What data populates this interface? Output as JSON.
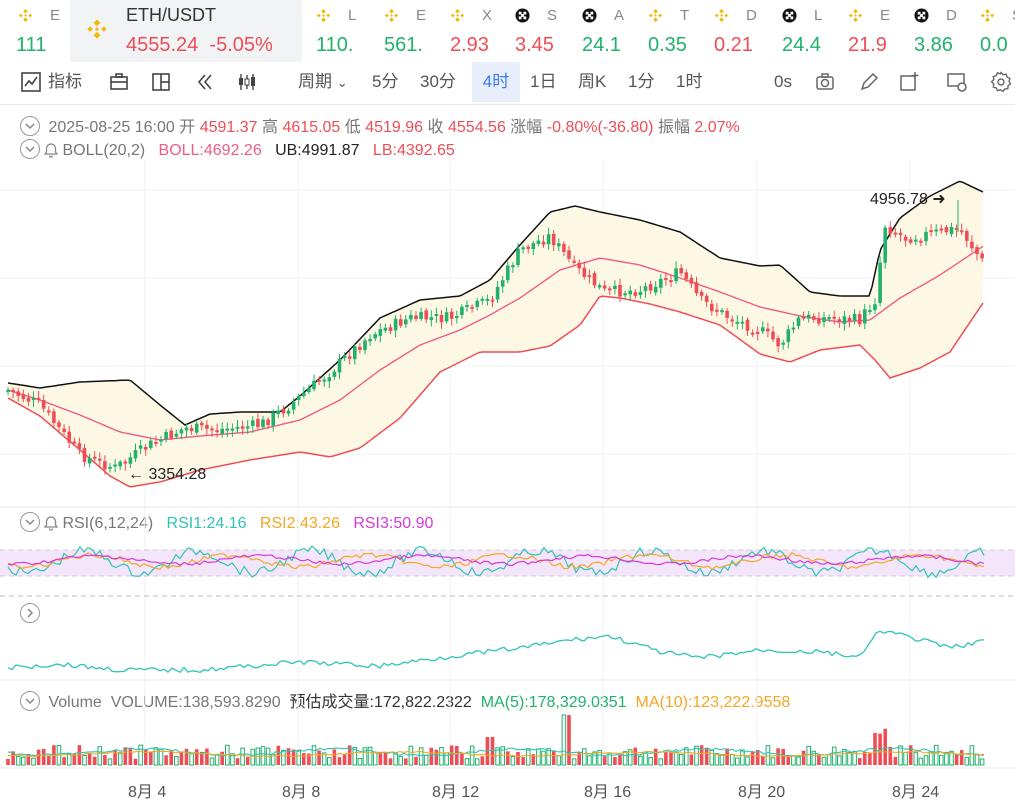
{
  "tickers": [
    {
      "name": "E",
      "price": "111"
    },
    {
      "name": "L",
      "price": "110."
    },
    {
      "name": "E",
      "price": "561."
    },
    {
      "name": "X",
      "price": "2.93"
    },
    {
      "name": "S",
      "price": "3.45"
    },
    {
      "name": "A",
      "price": "24.1"
    },
    {
      "name": "T",
      "price": "0.35"
    },
    {
      "name": "D",
      "price": "0.21"
    },
    {
      "name": "L",
      "price": "24.4"
    },
    {
      "name": "E",
      "price": "21.9"
    },
    {
      "name": "D",
      "price": "3.86"
    },
    {
      "name": "S",
      "price": "0.0"
    }
  ],
  "active_ticker": {
    "symbol": "ETH/USDT",
    "price": "4555.24",
    "change": "-5.05%"
  },
  "toolbar": {
    "indicators": "指标",
    "period": "周期",
    "intervals": [
      "5分",
      "30分",
      "4时",
      "1日",
      "周K",
      "1分",
      "1时"
    ],
    "selected_interval": "4时",
    "countdown": "0s"
  },
  "ohlc": {
    "date": "2025-08-25 16:00",
    "open_label": "开",
    "open": "4591.37",
    "high_label": "高",
    "high": "4615.05",
    "low_label": "低",
    "low": "4519.96",
    "close_label": "收",
    "close": "4554.56",
    "change_label": "涨幅",
    "change": "-0.80%(-36.80)",
    "amp_label": "振幅",
    "amp": "2.07%"
  },
  "boll": {
    "name": "BOLL(20,2)",
    "boll": "BOLL:4692.26",
    "ub": "UB:4991.87",
    "lb": "LB:4392.65"
  },
  "rsi": {
    "name": "RSI(6,12,24)",
    "rsi1": "RSI1:24.16",
    "rsi2": "RSI2:43.26",
    "rsi3": "RSI3:50.90"
  },
  "volume": {
    "name": "Volume",
    "vol": "VOLUME:138,593.8290",
    "est": "预估成交量:172,822.2322",
    "ma5": "MA(5):178,329.0351",
    "ma10": "MA(10):123,222.9558"
  },
  "colors": {
    "up": "#20b26c",
    "down": "#ef4d56",
    "boll_mid": "#ef5c86",
    "boll_ub": "#111111",
    "boll_lb": "#ef4d56",
    "boll_fill": "#fdf8e4",
    "rsi1": "#2ec4b6",
    "rsi2": "#f5a623",
    "rsi3": "#d63ad8",
    "accent": "#3b7cf5",
    "ticker_icon": "#f0b90b"
  },
  "chart_data": {
    "type": "candlestick",
    "annotations": [
      {
        "label": "4956.78",
        "position": "high"
      },
      {
        "label": "3354.28",
        "position": "low"
      }
    ],
    "x_ticks": [
      "8月 4",
      "8月 8",
      "8月 12",
      "8月 16",
      "8月 20",
      "8月 24"
    ]
  }
}
